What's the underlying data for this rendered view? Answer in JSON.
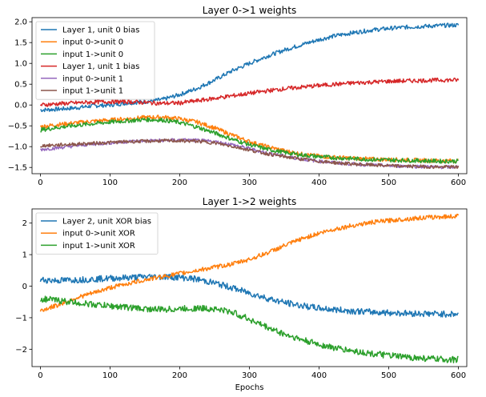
{
  "figure": {
    "xlabel": "Epochs"
  },
  "chart_data": [
    {
      "type": "line",
      "title": "Layer 0->1 weights",
      "xlabel": "",
      "ylabel": "",
      "xlim": [
        -12,
        612
      ],
      "ylim": [
        -1.65,
        2.1
      ],
      "xticks": [
        0,
        100,
        200,
        300,
        400,
        500,
        600
      ],
      "yticks": [
        -1.5,
        -1.0,
        -0.5,
        0.0,
        0.5,
        1.0,
        1.5,
        2.0
      ],
      "ytick_labels": [
        "−1.5",
        "−1.0",
        "−0.5",
        "0.0",
        "0.5",
        "1.0",
        "1.5",
        "2.0"
      ],
      "grid": false,
      "legend_position": "top-left",
      "series": [
        {
          "name": "Layer 1, unit 0 bias",
          "color": "#1f77b4",
          "noise": 0.05,
          "x": [
            0,
            25,
            50,
            75,
            100,
            125,
            150,
            175,
            200,
            225,
            250,
            275,
            300,
            325,
            350,
            375,
            400,
            425,
            450,
            475,
            500,
            525,
            550,
            575,
            600
          ],
          "values": [
            -0.12,
            -0.1,
            -0.07,
            -0.02,
            0.0,
            0.05,
            0.08,
            0.13,
            0.25,
            0.4,
            0.6,
            0.82,
            1.0,
            1.17,
            1.32,
            1.45,
            1.57,
            1.67,
            1.74,
            1.8,
            1.84,
            1.87,
            1.89,
            1.91,
            1.92
          ]
        },
        {
          "name": "input 0->unit 0",
          "color": "#ff7f0e",
          "noise": 0.05,
          "x": [
            0,
            25,
            50,
            75,
            100,
            125,
            150,
            175,
            200,
            225,
            250,
            275,
            300,
            325,
            350,
            375,
            400,
            425,
            450,
            475,
            500,
            525,
            550,
            575,
            600
          ],
          "values": [
            -0.52,
            -0.47,
            -0.43,
            -0.39,
            -0.36,
            -0.33,
            -0.3,
            -0.29,
            -0.33,
            -0.41,
            -0.55,
            -0.72,
            -0.88,
            -1.0,
            -1.1,
            -1.18,
            -1.23,
            -1.26,
            -1.28,
            -1.3,
            -1.31,
            -1.32,
            -1.33,
            -1.34,
            -1.34
          ]
        },
        {
          "name": "input 1->unit 0",
          "color": "#2ca02c",
          "noise": 0.05,
          "x": [
            0,
            25,
            50,
            75,
            100,
            125,
            150,
            175,
            200,
            225,
            250,
            275,
            300,
            325,
            350,
            375,
            400,
            425,
            450,
            475,
            500,
            525,
            550,
            575,
            600
          ],
          "values": [
            -0.6,
            -0.54,
            -0.49,
            -0.45,
            -0.41,
            -0.38,
            -0.35,
            -0.36,
            -0.42,
            -0.53,
            -0.67,
            -0.82,
            -0.95,
            -1.06,
            -1.14,
            -1.2,
            -1.24,
            -1.27,
            -1.29,
            -1.31,
            -1.32,
            -1.33,
            -1.34,
            -1.35,
            -1.35
          ]
        },
        {
          "name": "Layer 1, unit 1 bias",
          "color": "#d62728",
          "noise": 0.05,
          "x": [
            0,
            25,
            50,
            75,
            100,
            125,
            150,
            175,
            200,
            225,
            250,
            275,
            300,
            325,
            350,
            375,
            400,
            425,
            450,
            475,
            500,
            525,
            550,
            575,
            600
          ],
          "values": [
            0.0,
            0.03,
            0.05,
            0.07,
            0.08,
            0.08,
            0.06,
            0.04,
            0.05,
            0.1,
            0.16,
            0.22,
            0.28,
            0.34,
            0.39,
            0.43,
            0.47,
            0.5,
            0.53,
            0.55,
            0.57,
            0.58,
            0.59,
            0.6,
            0.6
          ]
        },
        {
          "name": "input 0->unit 1",
          "color": "#9467bd",
          "noise": 0.04,
          "x": [
            0,
            25,
            50,
            75,
            100,
            125,
            150,
            175,
            200,
            225,
            250,
            275,
            300,
            325,
            350,
            375,
            400,
            425,
            450,
            475,
            500,
            525,
            550,
            575,
            600
          ],
          "values": [
            -1.07,
            -1.03,
            -0.98,
            -0.94,
            -0.91,
            -0.88,
            -0.86,
            -0.85,
            -0.84,
            -0.85,
            -0.88,
            -0.95,
            -1.05,
            -1.15,
            -1.23,
            -1.3,
            -1.35,
            -1.39,
            -1.42,
            -1.44,
            -1.46,
            -1.47,
            -1.48,
            -1.49,
            -1.49
          ]
        },
        {
          "name": "input 1->unit 1",
          "color": "#8c564b",
          "noise": 0.04,
          "x": [
            0,
            25,
            50,
            75,
            100,
            125,
            150,
            175,
            200,
            225,
            250,
            275,
            300,
            325,
            350,
            375,
            400,
            425,
            450,
            475,
            500,
            525,
            550,
            575,
            600
          ],
          "values": [
            -0.98,
            -0.96,
            -0.94,
            -0.92,
            -0.9,
            -0.88,
            -0.87,
            -0.86,
            -0.86,
            -0.87,
            -0.91,
            -0.99,
            -1.08,
            -1.17,
            -1.24,
            -1.3,
            -1.35,
            -1.39,
            -1.42,
            -1.44,
            -1.46,
            -1.47,
            -1.48,
            -1.49,
            -1.49
          ]
        }
      ]
    },
    {
      "type": "line",
      "title": "Layer 1->2 weights",
      "xlabel": "Epochs",
      "ylabel": "",
      "xlim": [
        -12,
        612
      ],
      "ylim": [
        -2.55,
        2.45
      ],
      "xticks": [
        0,
        100,
        200,
        300,
        400,
        500,
        600
      ],
      "yticks": [
        -2,
        -1,
        0,
        1,
        2
      ],
      "ytick_labels": [
        "−2",
        "−1",
        "0",
        "1",
        "2"
      ],
      "grid": false,
      "legend_position": "top-left",
      "series": [
        {
          "name": "Layer 2, unit XOR bias",
          "color": "#1f77b4",
          "noise": 0.1,
          "x": [
            0,
            25,
            50,
            75,
            100,
            125,
            150,
            175,
            200,
            225,
            250,
            275,
            300,
            325,
            350,
            375,
            400,
            425,
            450,
            475,
            500,
            525,
            550,
            575,
            600
          ],
          "values": [
            0.2,
            0.18,
            0.2,
            0.22,
            0.25,
            0.27,
            0.3,
            0.3,
            0.28,
            0.22,
            0.1,
            -0.05,
            -0.22,
            -0.38,
            -0.52,
            -0.62,
            -0.7,
            -0.75,
            -0.79,
            -0.82,
            -0.84,
            -0.86,
            -0.87,
            -0.88,
            -0.89
          ]
        },
        {
          "name": "input 0->unit XOR",
          "color": "#ff7f0e",
          "noise": 0.07,
          "x": [
            0,
            25,
            50,
            75,
            100,
            125,
            150,
            175,
            200,
            225,
            250,
            275,
            300,
            325,
            350,
            375,
            400,
            425,
            450,
            475,
            500,
            525,
            550,
            575,
            600
          ],
          "values": [
            -0.78,
            -0.6,
            -0.38,
            -0.22,
            -0.05,
            0.08,
            0.2,
            0.3,
            0.4,
            0.5,
            0.6,
            0.7,
            0.85,
            1.05,
            1.28,
            1.5,
            1.68,
            1.82,
            1.93,
            2.02,
            2.08,
            2.13,
            2.17,
            2.2,
            2.22
          ]
        },
        {
          "name": "input 1->unit XOR",
          "color": "#2ca02c",
          "noise": 0.1,
          "x": [
            0,
            25,
            50,
            75,
            100,
            125,
            150,
            175,
            200,
            225,
            250,
            275,
            300,
            325,
            350,
            375,
            400,
            425,
            450,
            475,
            500,
            525,
            550,
            575,
            600
          ],
          "values": [
            -0.4,
            -0.45,
            -0.52,
            -0.58,
            -0.63,
            -0.67,
            -0.72,
            -0.74,
            -0.72,
            -0.7,
            -0.72,
            -0.82,
            -1.05,
            -1.3,
            -1.52,
            -1.7,
            -1.85,
            -1.97,
            -2.06,
            -2.14,
            -2.2,
            -2.25,
            -2.29,
            -2.32,
            -2.33
          ]
        }
      ]
    }
  ]
}
